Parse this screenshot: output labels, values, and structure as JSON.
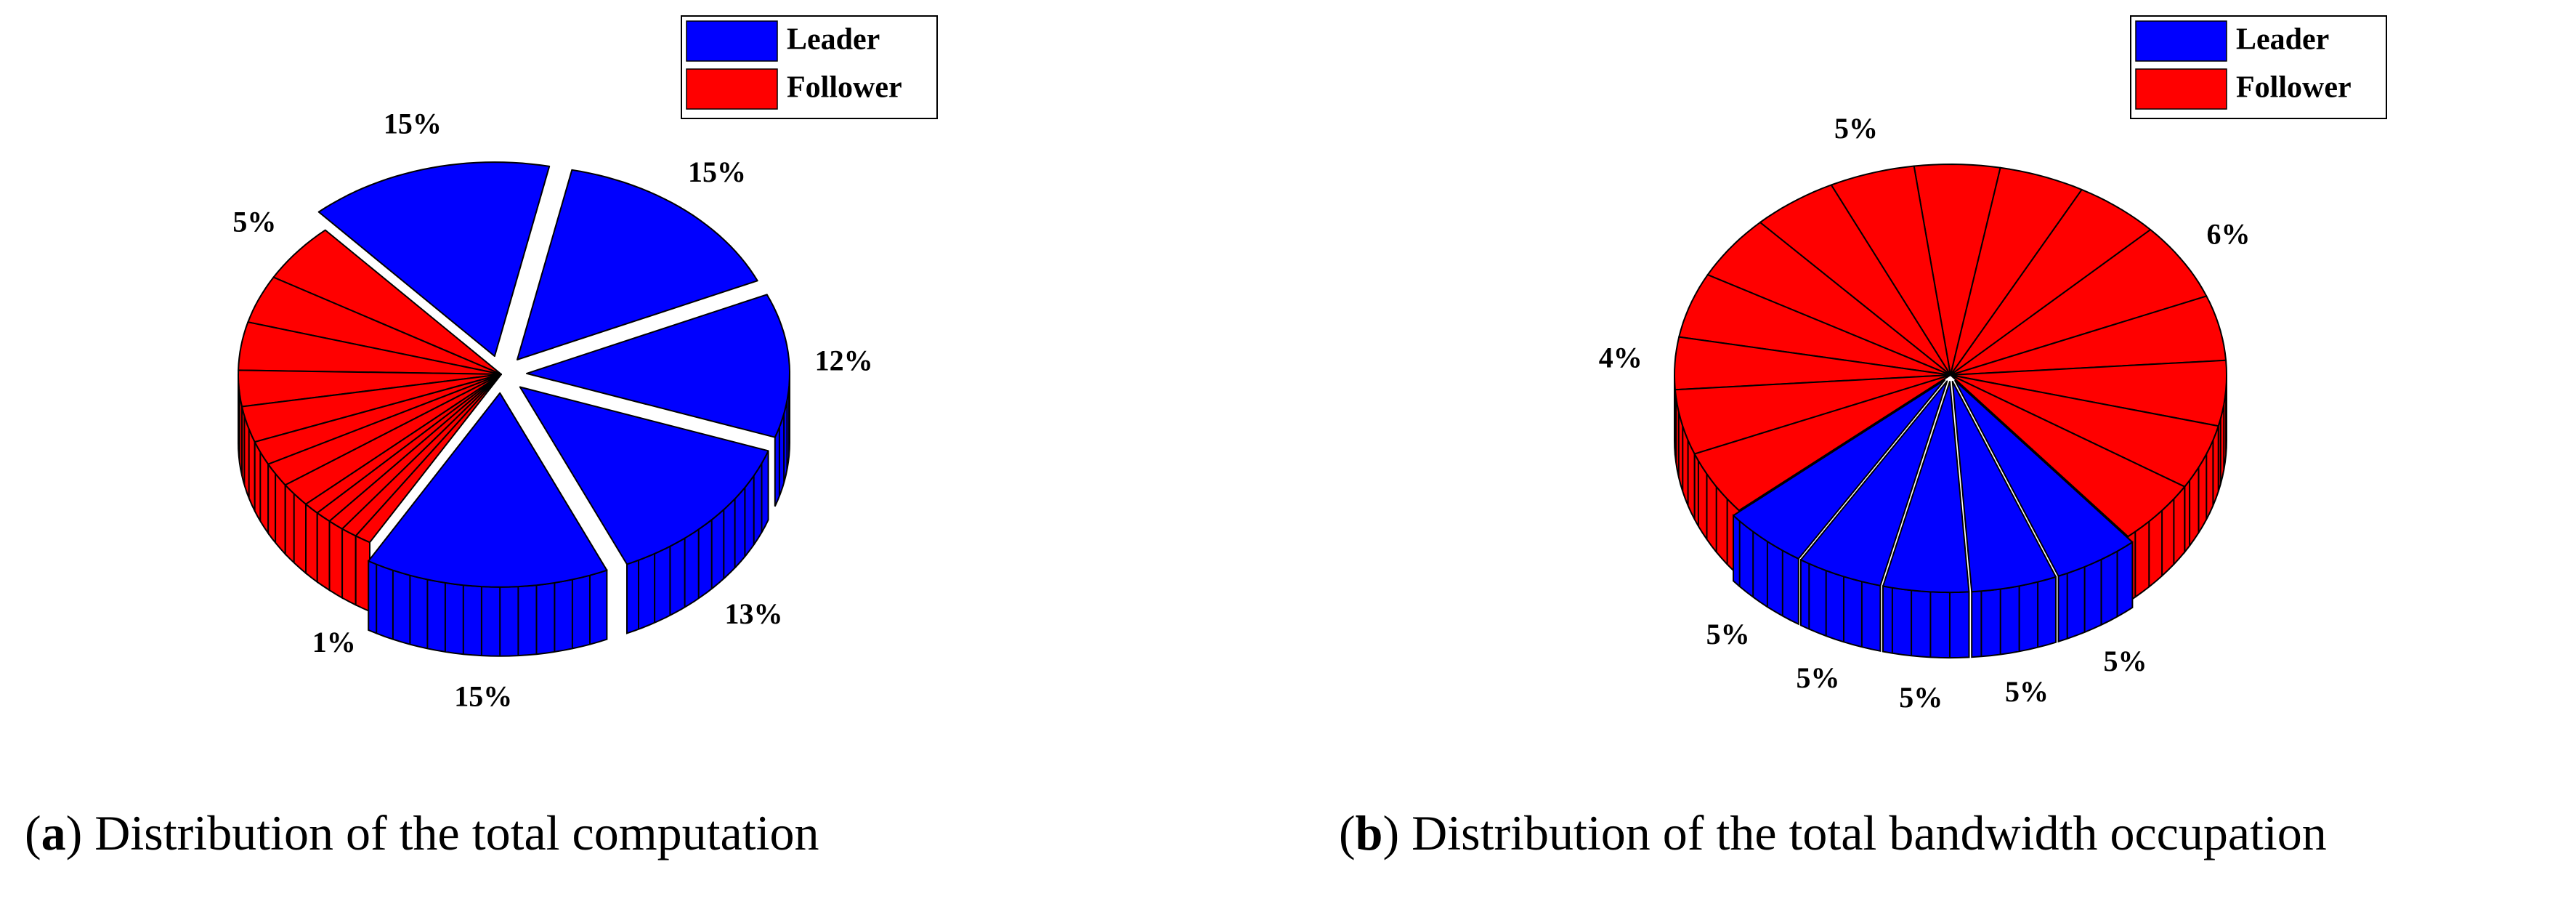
{
  "chart_data": [
    {
      "type": "pie",
      "legend": "upper right",
      "caption": [
        "(",
        "a",
        ") Distribution of the total computation"
      ],
      "series": [
        {
          "name": "Leader",
          "color": "#0000ff",
          "values": [
            15,
            15,
            12,
            13,
            15
          ],
          "value_labels": [
            "15%",
            "15%",
            "12%",
            "13%",
            "15%"
          ]
        },
        {
          "name": "Follower",
          "color": "#ff0000",
          "values": [
            1,
            1,
            1,
            1,
            1,
            2,
            2,
            2,
            3,
            3,
            4,
            4,
            5
          ],
          "value_labels": [
            "1%",
            null,
            null,
            null,
            null,
            null,
            null,
            null,
            null,
            null,
            null,
            null,
            "5%"
          ]
        }
      ]
    },
    {
      "type": "pie",
      "legend": "upper right",
      "caption": [
        "(",
        "b",
        ") Distribution of the total bandwidth occupation"
      ],
      "series": [
        {
          "name": "Leader",
          "color": "#0000ff",
          "values": [
            5,
            5,
            5,
            5,
            5
          ],
          "value_labels": [
            "5%",
            "5%",
            "5%",
            "5%",
            "5%"
          ]
        },
        {
          "name": "Follower",
          "color": "#ff0000",
          "values": [
            5,
            5,
            4,
            5,
            5,
            5,
            5,
            5,
            5,
            5,
            6,
            5,
            5,
            5,
            5
          ],
          "value_labels": [
            null,
            null,
            "4%",
            null,
            null,
            null,
            "5%",
            null,
            null,
            null,
            "6%",
            null,
            null,
            null,
            null
          ]
        }
      ]
    }
  ]
}
